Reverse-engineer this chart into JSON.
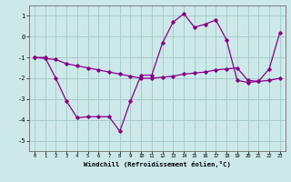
{
  "xlabel": "Windchill (Refroidissement éolien,°C)",
  "bg_color": "#cce8e8",
  "grid_color": "#aacccc",
  "line_color": "#880088",
  "x_values": [
    0,
    1,
    2,
    3,
    4,
    5,
    6,
    7,
    8,
    9,
    10,
    11,
    12,
    13,
    14,
    15,
    16,
    17,
    18,
    19,
    20,
    21,
    22,
    23
  ],
  "line1_y": [
    -1.0,
    -1.05,
    -1.1,
    -1.3,
    -1.4,
    -1.5,
    -1.6,
    -1.7,
    -1.8,
    -1.9,
    -2.0,
    -2.0,
    -1.95,
    -1.9,
    -1.8,
    -1.75,
    -1.7,
    -1.6,
    -1.55,
    -1.5,
    -2.1,
    -2.15,
    -2.1,
    -2.0
  ],
  "line2_y": [
    -1.0,
    -1.0,
    -2.0,
    -3.1,
    -3.9,
    -3.85,
    -3.85,
    -3.85,
    -4.55,
    -3.1,
    -1.85,
    -1.85,
    -0.3,
    0.7,
    1.1,
    0.45,
    0.6,
    0.8,
    -0.15,
    -2.1,
    -2.2,
    -2.15,
    -1.55,
    0.2
  ],
  "ylim": [
    -5.5,
    1.5
  ],
  "yticks": [
    -5,
    -4,
    -3,
    -2,
    -1,
    0,
    1
  ],
  "xlim": [
    -0.5,
    23.5
  ],
  "xticks": [
    0,
    1,
    2,
    3,
    4,
    5,
    6,
    7,
    8,
    9,
    10,
    11,
    12,
    13,
    14,
    15,
    16,
    17,
    18,
    19,
    20,
    21,
    22,
    23
  ]
}
